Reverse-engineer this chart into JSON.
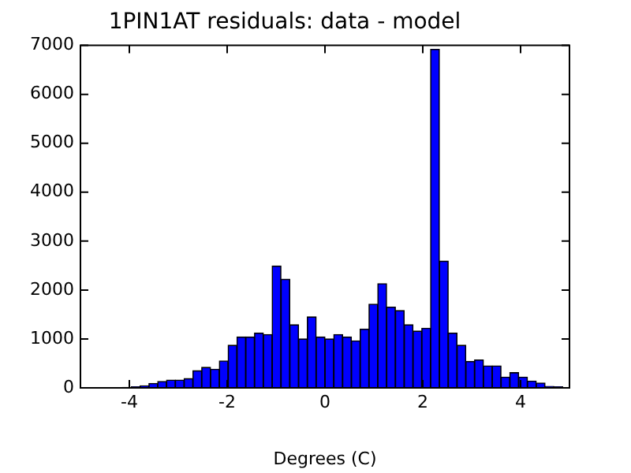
{
  "chart_data": {
    "type": "histogram",
    "title": "1PIN1AT residuals: data - model",
    "xlabel": "Degrees (C)",
    "bins": [
      -4.14,
      -3.96,
      -3.78,
      -3.6,
      -3.42,
      -3.24,
      -3.06,
      -2.88,
      -2.7,
      -2.52,
      -2.34,
      -2.16,
      -1.98,
      -1.8,
      -1.62,
      -1.44,
      -1.26,
      -1.08,
      -0.9,
      -0.72,
      -0.54,
      -0.36,
      -0.18,
      0,
      0.18,
      0.36,
      0.54,
      0.72,
      0.9,
      1.08,
      1.26,
      1.44,
      1.62,
      1.8,
      1.98,
      2.16,
      2.34,
      2.52,
      2.7,
      2.88,
      3.06,
      3.24,
      3.42,
      3.6,
      3.78,
      3.96,
      4.14,
      4.32,
      4.5,
      4.68,
      4.86
    ],
    "values": [
      10,
      20,
      40,
      90,
      130,
      160,
      160,
      190,
      350,
      420,
      380,
      550,
      870,
      1040,
      1040,
      1120,
      1090,
      2490,
      2220,
      1290,
      1000,
      1450,
      1040,
      1000,
      1090,
      1040,
      960,
      1200,
      1710,
      2130,
      1650,
      1580,
      1290,
      1160,
      1220,
      6920,
      2590,
      1120,
      870,
      540,
      570,
      450,
      450,
      220,
      310,
      220,
      140,
      100,
      30,
      20
    ],
    "color": "#0000ff",
    "xlim": [
      -5,
      5
    ],
    "xticks": [
      -4,
      -2,
      0,
      2,
      4
    ],
    "ylim": [
      0,
      7000
    ],
    "yticks": [
      0,
      1000,
      2000,
      3000,
      4000,
      5000,
      6000,
      7000
    ],
    "grid": false
  }
}
